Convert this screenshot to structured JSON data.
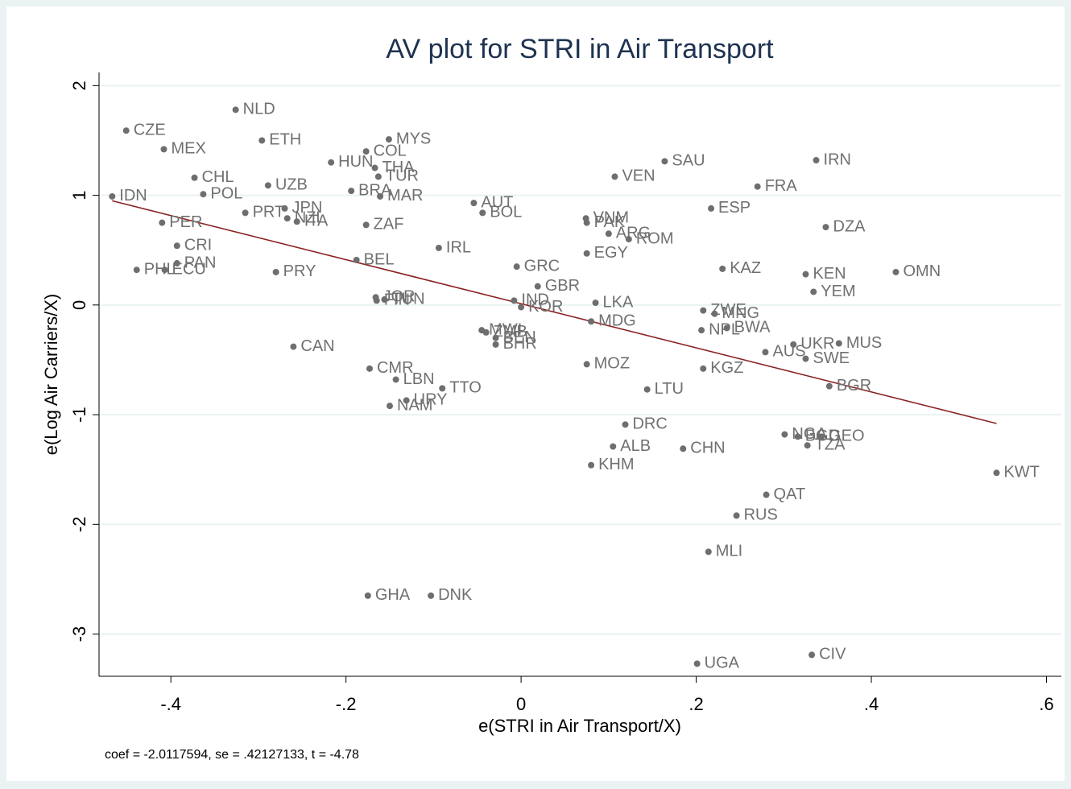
{
  "chart_data": {
    "type": "scatter",
    "title": "AV plot for STRI in Air Transport",
    "x_label": "e(STRI in Air Transport/X)",
    "y_label": "e(Log Air Carriers/X)",
    "note": "coef = -2.0117594, se = .42127133, t = -4.78",
    "labels": [
      "NLD",
      "CZE",
      "MEX",
      "ETH",
      "MYS",
      "COL",
      "HUN",
      "THA",
      "TUR",
      "CHL",
      "UZB",
      "POL",
      "IDN",
      "BRA",
      "MAR",
      "AUT",
      "BOL",
      "SAU",
      "IRN",
      "VEN",
      "FRA",
      "ESP",
      "DZA",
      "PRT",
      "JPN",
      "NZL",
      "ITA",
      "ZAF",
      "PER",
      "CRI",
      "PAN",
      "PHL",
      "ECU",
      "PRY",
      "BEL",
      "IRL",
      "VNM",
      "PAK",
      "ARG",
      "ROM",
      "EGY",
      "GRC",
      "GBR",
      "KAZ",
      "KEN",
      "OMN",
      "YEM",
      "JOR",
      "FIN",
      "TUN",
      "IND",
      "KOR",
      "LKA",
      "MDG",
      "ZWE",
      "MNG",
      "NPL",
      "BWA",
      "CAN",
      "MWI",
      "ZMB",
      "BEN",
      "BHR",
      "AUS",
      "UKR",
      "MUS",
      "SWE",
      "KGZ",
      "MOZ",
      "CMR",
      "LBN",
      "TTO",
      "URY",
      "NAM",
      "LTU",
      "BGR",
      "DRC",
      "ALB",
      "CHN",
      "NGA",
      "BGD",
      "GEO",
      "TZA",
      "KHM",
      "KWT",
      "QAT",
      "RUS",
      "MLI",
      "GHA",
      "DNK",
      "UGA",
      "CIV"
    ],
    "x": [
      -0.326,
      -0.451,
      -0.408,
      -0.296,
      -0.151,
      -0.177,
      -0.217,
      -0.167,
      -0.163,
      -0.373,
      -0.289,
      -0.363,
      -0.467,
      -0.194,
      -0.161,
      -0.054,
      -0.044,
      0.164,
      0.337,
      0.107,
      0.27,
      0.217,
      0.348,
      -0.315,
      -0.27,
      -0.267,
      -0.256,
      -0.177,
      -0.41,
      -0.393,
      -0.393,
      -0.439,
      -0.407,
      -0.28,
      -0.188,
      -0.094,
      0.074,
      0.075,
      0.1,
      0.123,
      0.075,
      -0.005,
      0.019,
      0.23,
      0.325,
      0.428,
      0.334,
      -0.166,
      -0.165,
      -0.156,
      -0.008,
      0.0,
      0.085,
      0.08,
      0.208,
      0.221,
      0.206,
      0.235,
      -0.26,
      -0.045,
      -0.04,
      -0.029,
      -0.029,
      0.279,
      0.311,
      0.363,
      0.325,
      0.208,
      0.075,
      -0.173,
      -0.143,
      -0.09,
      -0.131,
      -0.15,
      0.144,
      0.352,
      0.119,
      0.105,
      0.185,
      0.301,
      0.316,
      0.343,
      0.327,
      0.08,
      0.543,
      0.28,
      0.246,
      0.214,
      -0.175,
      -0.103,
      0.201,
      0.332
    ],
    "values": [
      1.78,
      1.59,
      1.42,
      1.5,
      1.51,
      1.4,
      1.3,
      1.25,
      1.17,
      1.16,
      1.09,
      1.01,
      0.99,
      1.04,
      0.99,
      0.93,
      0.84,
      1.31,
      1.32,
      1.17,
      1.08,
      0.88,
      0.71,
      0.84,
      0.88,
      0.79,
      0.76,
      0.73,
      0.75,
      0.54,
      0.38,
      0.32,
      0.32,
      0.3,
      0.41,
      0.52,
      0.79,
      0.75,
      0.65,
      0.6,
      0.47,
      0.35,
      0.17,
      0.33,
      0.28,
      0.3,
      0.12,
      0.07,
      0.04,
      0.05,
      0.04,
      -0.02,
      0.02,
      -0.15,
      -0.05,
      -0.08,
      -0.23,
      -0.21,
      -0.38,
      -0.23,
      -0.25,
      -0.3,
      -0.36,
      -0.43,
      -0.36,
      -0.35,
      -0.49,
      -0.58,
      -0.54,
      -0.58,
      -0.68,
      -0.76,
      -0.87,
      -0.92,
      -0.77,
      -0.74,
      -1.09,
      -1.29,
      -1.31,
      -1.18,
      -1.2,
      -1.2,
      -1.28,
      -1.46,
      -1.53,
      -1.73,
      -1.92,
      -2.25,
      -2.65,
      -2.65,
      -3.27,
      -3.19
    ],
    "color": "#6e6e6e",
    "fit": {
      "x": [
        -0.467,
        0.543
      ],
      "y": [
        0.95,
        -1.08
      ],
      "color": "#8b2323"
    },
    "xlim": [
      -0.482,
      0.617
    ],
    "ylim": [
      -3.385,
      2.12
    ],
    "xticks": [
      {
        "value": -0.4,
        "label": "-.4"
      },
      {
        "value": -0.2,
        "label": "-.2"
      },
      0,
      {
        "value": 0.2,
        "label": ".2"
      },
      {
        "value": 0.4,
        "label": ".4"
      },
      {
        "value": 0.6,
        "label": ".6"
      }
    ],
    "yticks": [
      2,
      1,
      0,
      -1,
      -2,
      -3
    ],
    "grid": true
  }
}
